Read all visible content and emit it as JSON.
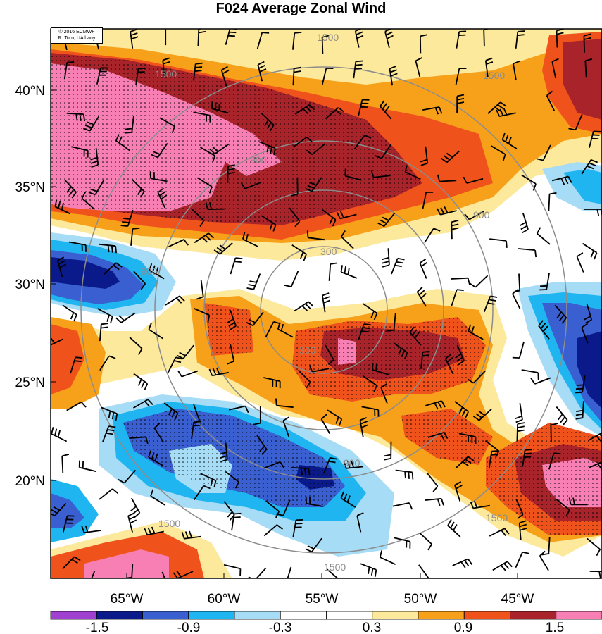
{
  "title": "F024 Average Zonal Wind",
  "credit": {
    "line1": "© 2016 ECMWF",
    "line2": "R. Torn, UAlbany"
  },
  "map": {
    "lat_ticks": [
      "40°N",
      "35°N",
      "30°N",
      "25°N",
      "20°N"
    ],
    "lon_ticks": [
      "65°W",
      "60°W",
      "55°W",
      "50°W",
      "45°W"
    ],
    "lat_range": [
      15,
      43
    ],
    "lon_range": [
      -69,
      -41
    ],
    "contour_labels": [
      "1500",
      "1500",
      "1500",
      "1500",
      "1500",
      "1500",
      "900",
      "900",
      "900",
      "900",
      "300",
      "300"
    ],
    "stipple": true
  },
  "colorbar": {
    "labels": [
      "-1.5",
      "-0.9",
      "-0.3",
      "0.3",
      "0.9",
      "1.5"
    ],
    "colors": [
      "#a040d0",
      "#0a1a8a",
      "#3a5fd0",
      "#1fb5f0",
      "#a6dcf5",
      "#ffffff",
      "#ffffff",
      "#fde99b",
      "#f7a11a",
      "#f0521c",
      "#a8242a",
      "#f77fb4"
    ]
  }
}
